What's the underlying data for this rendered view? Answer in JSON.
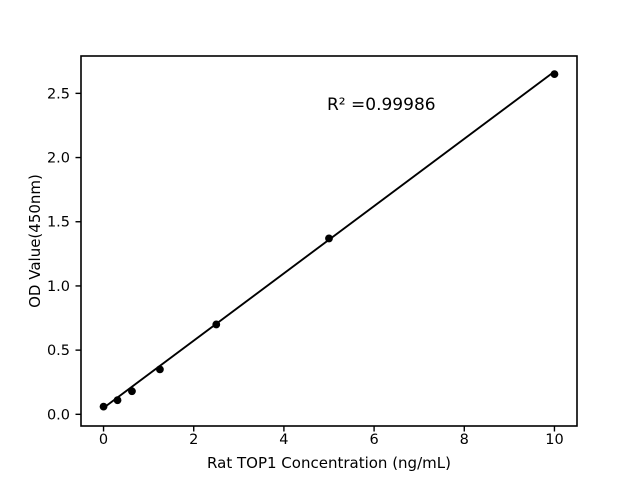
{
  "figure": {
    "background": "#ffffff",
    "foreground": "#000000"
  },
  "chart_data": {
    "type": "scatter",
    "title": "",
    "xlabel": "Rat TOP1 Concentration (ng/mL)",
    "ylabel": "OD Value(450nm)",
    "annotation": "R² =0.99986",
    "points": {
      "x": [
        0,
        0.31,
        0.63,
        1.25,
        2.5,
        5,
        10
      ],
      "y": [
        0.06,
        0.11,
        0.18,
        0.35,
        0.7,
        1.37,
        2.65
      ]
    },
    "trendline": {
      "x": [
        0,
        10
      ],
      "y": [
        0.05,
        2.67
      ]
    },
    "xticks": [
      0,
      2,
      4,
      6,
      8,
      10
    ],
    "xtick_labels": [
      "0",
      "2",
      "4",
      "6",
      "8",
      "10"
    ],
    "yticks": [
      0.0,
      0.5,
      1.0,
      1.5,
      2.0,
      2.5
    ],
    "ytick_labels": [
      "0.0",
      "0.5",
      "1.0",
      "1.5",
      "2.0",
      "2.5"
    ],
    "xlim": [
      -0.5,
      10.5
    ],
    "ylim": [
      -0.091,
      2.791
    ],
    "grid": false,
    "legend": null,
    "marker_color": "#000000",
    "line_color": "#000000"
  }
}
